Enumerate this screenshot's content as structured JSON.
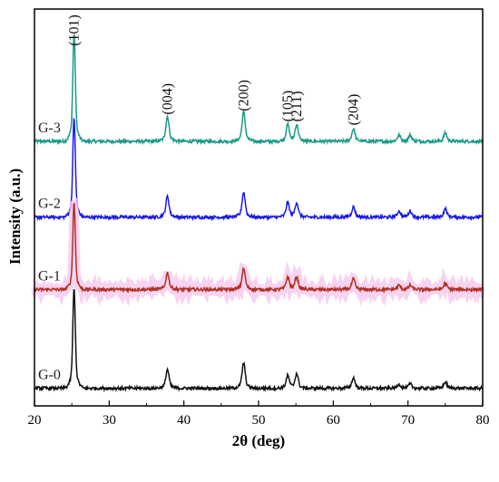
{
  "chart_data": {
    "type": "line",
    "xlabel": "2θ (deg)",
    "ylabel": "Intensity (a.u.)",
    "xlim": [
      20,
      80
    ],
    "xticks": [
      "20",
      "30",
      "40",
      "50",
      "60",
      "70",
      "80"
    ],
    "yticks_shown": false,
    "grid": false,
    "legend": "none",
    "peaks": [
      {
        "label": "(101)",
        "x": 25.3
      },
      {
        "label": "(004)",
        "x": 37.8
      },
      {
        "label": "(200)",
        "x": 48.0
      },
      {
        "label": "(105)",
        "x": 53.9
      },
      {
        "label": "(211)",
        "x": 55.1
      },
      {
        "label": "(204)",
        "x": 62.7
      }
    ],
    "series": [
      {
        "name": "G-3",
        "color": "#1a9a8a",
        "baseline": 1.5,
        "peak_heights": [
          0.52,
          0.12,
          0.14,
          0.08,
          0.08,
          0.06,
          0.03,
          0.03,
          0.04
        ],
        "peak_positions": [
          25.3,
          37.8,
          48.0,
          53.9,
          55.1,
          62.7,
          68.8,
          70.3,
          75.0
        ]
      },
      {
        "name": "G-2",
        "color": "#1a1aee",
        "baseline": 1.07,
        "peak_heights": [
          0.48,
          0.1,
          0.12,
          0.07,
          0.07,
          0.05,
          0.03,
          0.03,
          0.04
        ],
        "peak_positions": [
          25.3,
          37.8,
          48.0,
          53.9,
          55.1,
          62.7,
          68.8,
          70.3,
          75.0
        ]
      },
      {
        "name": "G-1",
        "color": "#b03020",
        "baseline": 0.66,
        "peak_heights": [
          0.42,
          0.08,
          0.1,
          0.06,
          0.06,
          0.05,
          0.02,
          0.02,
          0.03
        ],
        "peak_positions": [
          25.3,
          37.8,
          48.0,
          53.9,
          55.1,
          62.7,
          68.8,
          70.3,
          75.0
        ]
      },
      {
        "name": "G-0",
        "color": "#111111",
        "baseline": 0.1,
        "peak_heights": [
          0.48,
          0.09,
          0.12,
          0.06,
          0.07,
          0.05,
          0.02,
          0.02,
          0.03
        ],
        "peak_positions": [
          25.3,
          37.8,
          48.0,
          53.9,
          55.1,
          62.7,
          68.8,
          70.3,
          75.0
        ]
      }
    ]
  }
}
